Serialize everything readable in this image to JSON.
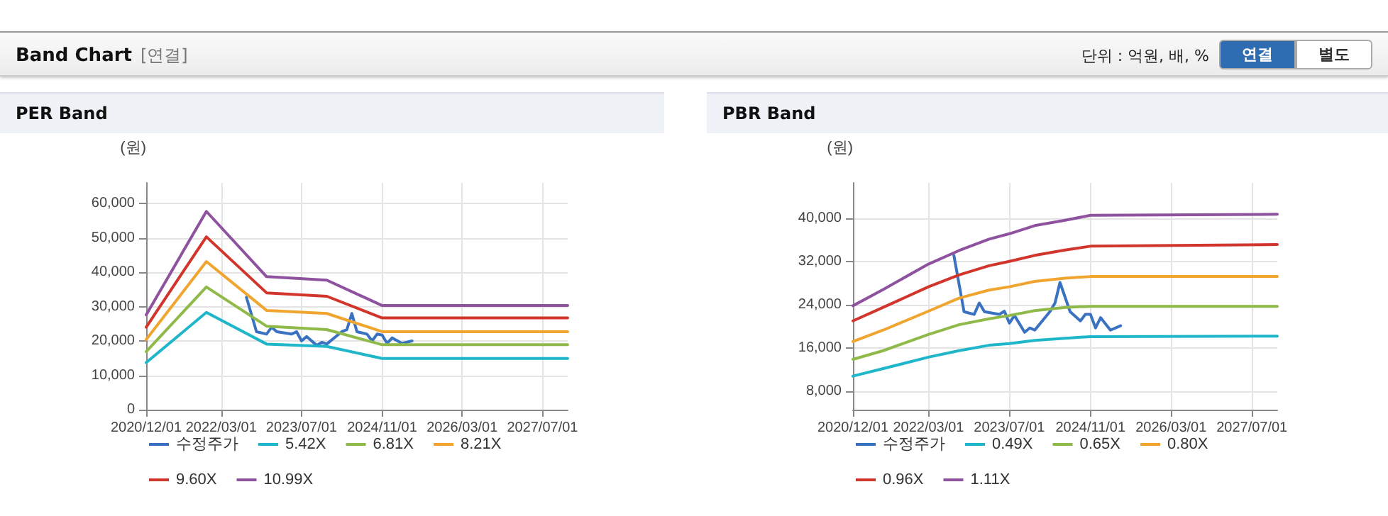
{
  "chart_data": [
    {
      "type": "other",
      "title": "Band Chart",
      "annotations": [
        "[연결]",
        "단위 : 억원, 배, %",
        "연결",
        "별도"
      ]
    },
    {
      "type": "line",
      "title": "PER Band",
      "ylabel": "(원)",
      "x": [
        "2020-12-01",
        "2021-12-01",
        "2022-12-01",
        "2023-12-01",
        "2024-11-01",
        "2027-12-01"
      ],
      "xlim": [
        "2020-12-01",
        "2027-12-01"
      ],
      "xticks": [
        {
          "value": "2020-12-01",
          "label": "2020/12/01"
        },
        {
          "value": "2022-03-01",
          "label": "2022/03/01"
        },
        {
          "value": "2023-07-01",
          "label": "2023/07/01"
        },
        {
          "value": "2024-11-01",
          "label": "2024/11/01"
        },
        {
          "value": "2026-03-01",
          "label": "2026/03/01"
        },
        {
          "value": "2027-07-01",
          "label": "2027/07/01"
        }
      ],
      "ylim": [
        0,
        66000
      ],
      "yticks": [
        0,
        {
          "value": 10000,
          "label": "10,000"
        },
        {
          "value": 20000,
          "label": "20,000"
        },
        {
          "value": 30000,
          "label": "30,000"
        },
        {
          "value": 40000,
          "label": "40,000"
        },
        {
          "value": 50000,
          "label": "50,000"
        },
        {
          "value": 60000,
          "label": "60,000"
        }
      ],
      "grid": true,
      "legend": "bottom",
      "marker": "none",
      "line_style": "solid",
      "series": [
        {
          "name": "수정주가",
          "color": "#3a72c2",
          "x": [
            "2022-08-01",
            "2022-10-01",
            "2022-12-01",
            "2023-01-01",
            "2023-02-01",
            "2023-05-01",
            "2023-06-01",
            "2023-07-01",
            "2023-08-01",
            "2023-10-01",
            "2023-11-01",
            "2023-12-01",
            "2024-03-01",
            "2024-04-01",
            "2024-05-01",
            "2024-06-01",
            "2024-08-01",
            "2024-09-01",
            "2024-10-01",
            "2024-11-01",
            "2024-12-01",
            "2025-01-01",
            "2025-03-01",
            "2025-05-01"
          ],
          "values": [
            32700,
            22700,
            22000,
            24000,
            22700,
            22000,
            22700,
            20000,
            21300,
            18700,
            19600,
            19100,
            22700,
            23300,
            28000,
            22700,
            22000,
            20000,
            22000,
            21700,
            19300,
            20900,
            19300,
            20000
          ]
        },
        {
          "name": "5.42X",
          "color": "#1fb6c9",
          "values": [
            13700,
            28300,
            19100,
            18400,
            14900,
            14900
          ]
        },
        {
          "name": "6.81X",
          "color": "#8fba4a",
          "values": [
            16900,
            35700,
            24300,
            23300,
            18900,
            18900
          ]
        },
        {
          "name": "8.21X",
          "color": "#f0a530",
          "values": [
            20400,
            43100,
            28900,
            28000,
            22700,
            22700
          ]
        },
        {
          "name": "9.60X",
          "color": "#d1352b",
          "values": [
            24000,
            50300,
            34000,
            33000,
            26700,
            26700
          ]
        },
        {
          "name": "10.99X",
          "color": "#8e529f",
          "values": [
            27600,
            57700,
            38700,
            37700,
            30300,
            30300
          ]
        }
      ]
    },
    {
      "type": "line",
      "title": "PBR Band",
      "ylabel": "(원)",
      "x": [
        "2020-12-01",
        "2021-06-01",
        "2022-03-01",
        "2022-09-01",
        "2023-03-01",
        "2023-07-01",
        "2023-12-01",
        "2024-06-01",
        "2024-11-01",
        "2027-12-01"
      ],
      "xlim": [
        "2020-12-01",
        "2027-12-01"
      ],
      "xticks": [
        {
          "value": "2020-12-01",
          "label": "2020/12/01"
        },
        {
          "value": "2022-03-01",
          "label": "2022/03/01"
        },
        {
          "value": "2023-07-01",
          "label": "2023/07/01"
        },
        {
          "value": "2024-11-01",
          "label": "2024/11/01"
        },
        {
          "value": "2026-03-01",
          "label": "2026/03/01"
        },
        {
          "value": "2027-07-01",
          "label": "2027/07/01"
        }
      ],
      "ylim": [
        4600,
        46500
      ],
      "yticks": [
        {
          "value": 8000,
          "label": "8,000"
        },
        {
          "value": 16000,
          "label": "16,000"
        },
        {
          "value": 24000,
          "label": "24,000"
        },
        {
          "value": 32000,
          "label": "32,000"
        },
        {
          "value": 40000,
          "label": "40,000"
        }
      ],
      "grid": true,
      "legend": "bottom",
      "marker": "none",
      "line_style": "solid",
      "series": [
        {
          "name": "수정주가",
          "color": "#3a72c2",
          "x": [
            "2022-08-01",
            "2022-10-01",
            "2022-12-01",
            "2023-01-01",
            "2023-02-01",
            "2023-05-01",
            "2023-06-01",
            "2023-07-01",
            "2023-08-01",
            "2023-10-01",
            "2023-11-01",
            "2023-12-01",
            "2024-03-01",
            "2024-04-01",
            "2024-05-01",
            "2024-07-01",
            "2024-09-01",
            "2024-10-01",
            "2024-11-01",
            "2024-12-01",
            "2025-01-01",
            "2025-03-01",
            "2025-05-01"
          ],
          "values": [
            33100,
            22700,
            22200,
            24300,
            22700,
            22200,
            22800,
            20600,
            22000,
            18900,
            19700,
            19300,
            22700,
            24300,
            28100,
            22700,
            21000,
            22200,
            22200,
            19700,
            21600,
            19300,
            20100
          ]
        },
        {
          "name": "0.49X",
          "color": "#1fb6c9",
          "values": [
            10800,
            12200,
            14300,
            15500,
            16500,
            16800,
            17400,
            17800,
            18100,
            18200
          ]
        },
        {
          "name": "0.65X",
          "color": "#8fba4a",
          "values": [
            13900,
            15500,
            18500,
            20300,
            21400,
            22000,
            22900,
            23500,
            23700,
            23700
          ]
        },
        {
          "name": "0.80X",
          "color": "#f0a530",
          "values": [
            17200,
            19300,
            22800,
            25200,
            26700,
            27300,
            28300,
            28900,
            29200,
            29200
          ]
        },
        {
          "name": "0.96X",
          "color": "#d1352b",
          "values": [
            21000,
            23500,
            27300,
            29500,
            31200,
            32000,
            33100,
            34100,
            34800,
            35100
          ]
        },
        {
          "name": "1.11X",
          "color": "#8e529f",
          "values": [
            23800,
            26800,
            31500,
            34000,
            36100,
            37100,
            38600,
            39600,
            40500,
            40700
          ]
        }
      ]
    }
  ]
}
